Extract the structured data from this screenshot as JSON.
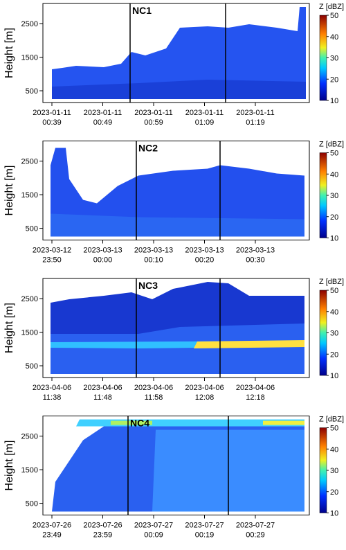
{
  "chart_data": [
    {
      "type": "heatmap",
      "label": "NC1",
      "y_label": "Height [m]",
      "colorbar_label": "Z [dBZ]",
      "xticks": [
        [
          "2023-01-11",
          "00:39"
        ],
        [
          "2023-01-11",
          "00:49"
        ],
        [
          "2023-01-11",
          "00:59"
        ],
        [
          "2023-01-11",
          "01:09"
        ],
        [
          "2023-01-11",
          "01:19"
        ]
      ],
      "ylim": [
        150,
        3100
      ],
      "yticks": [
        500,
        1500,
        2500
      ],
      "clim": [
        10,
        50
      ],
      "cticks": [
        10,
        20,
        30,
        40,
        50
      ]
    },
    {
      "type": "heatmap",
      "label": "NC2",
      "y_label": "Height [m]",
      "colorbar_label": "Z [dBZ]",
      "xticks": [
        [
          "2023-03-12",
          "23:50"
        ],
        [
          "2023-03-13",
          "00:00"
        ],
        [
          "2023-03-13",
          "00:10"
        ],
        [
          "2023-03-13",
          "00:20"
        ],
        [
          "2023-03-13",
          "00:30"
        ]
      ],
      "ylim": [
        150,
        3100
      ],
      "yticks": [
        500,
        1500,
        2500
      ],
      "clim": [
        10,
        50
      ],
      "cticks": [
        10,
        20,
        30,
        40,
        50
      ]
    },
    {
      "type": "heatmap",
      "label": "NC3",
      "y_label": "Height [m]",
      "colorbar_label": "Z [dBZ]",
      "xticks": [
        [
          "2023-04-06",
          "11:38"
        ],
        [
          "2023-04-06",
          "11:48"
        ],
        [
          "2023-04-06",
          "11:58"
        ],
        [
          "2023-04-06",
          "12:08"
        ],
        [
          "2023-04-06",
          "12:18"
        ]
      ],
      "ylim": [
        150,
        3100
      ],
      "yticks": [
        500,
        1500,
        2500
      ],
      "clim": [
        10,
        50
      ],
      "cticks": [
        10,
        20,
        30,
        40,
        50
      ]
    },
    {
      "type": "heatmap",
      "label": "NC4",
      "y_label": "Height [m]",
      "colorbar_label": "Z [dBZ]",
      "xticks": [
        [
          "2023-07-26",
          "23:49"
        ],
        [
          "2023-07-26",
          "23:59"
        ],
        [
          "2023-07-27",
          "00:09"
        ],
        [
          "2023-07-27",
          "00:19"
        ],
        [
          "2023-07-27",
          "00:29"
        ]
      ],
      "ylim": [
        150,
        3100
      ],
      "yticks": [
        500,
        1500,
        2500
      ],
      "clim": [
        10,
        50
      ],
      "cticks": [
        10,
        20,
        30,
        40,
        50
      ]
    }
  ]
}
